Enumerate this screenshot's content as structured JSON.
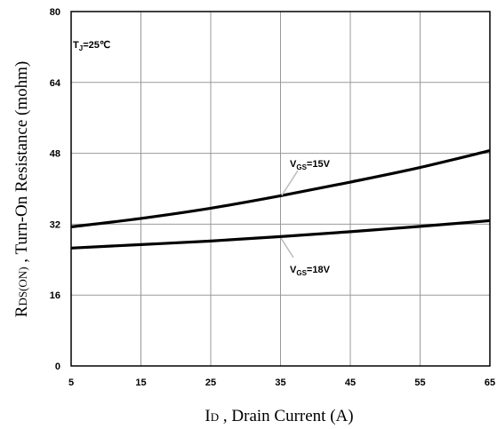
{
  "chart_data": {
    "type": "line",
    "title": "",
    "xlabel": {
      "main": "I",
      "sub": "D",
      "rest": " , Drain Current (A)"
    },
    "ylabel": {
      "main": "R",
      "sub": "DS(ON)",
      "rest": " , Turn-On Resistance (mohm)"
    },
    "xlim": [
      5,
      65
    ],
    "ylim": [
      0,
      80
    ],
    "xticks": [
      5,
      15,
      25,
      35,
      45,
      55,
      65
    ],
    "yticks": [
      0,
      16,
      32,
      48,
      64,
      80
    ],
    "grid": true,
    "condition": {
      "main": "T",
      "sub": "J",
      "rest": "=25℃"
    },
    "series": [
      {
        "label": {
          "main": "V",
          "sub": "GS",
          "rest": "=15V"
        },
        "x": [
          5,
          15,
          25,
          35,
          45,
          55,
          65
        ],
        "y": [
          31.4,
          33.3,
          35.6,
          38.4,
          41.5,
          44.8,
          48.6
        ]
      },
      {
        "label": {
          "main": "V",
          "sub": "GS",
          "rest": "=18V"
        },
        "x": [
          5,
          15,
          25,
          35,
          45,
          55,
          65
        ],
        "y": [
          26.6,
          27.4,
          28.2,
          29.2,
          30.3,
          31.5,
          32.8
        ]
      }
    ]
  }
}
